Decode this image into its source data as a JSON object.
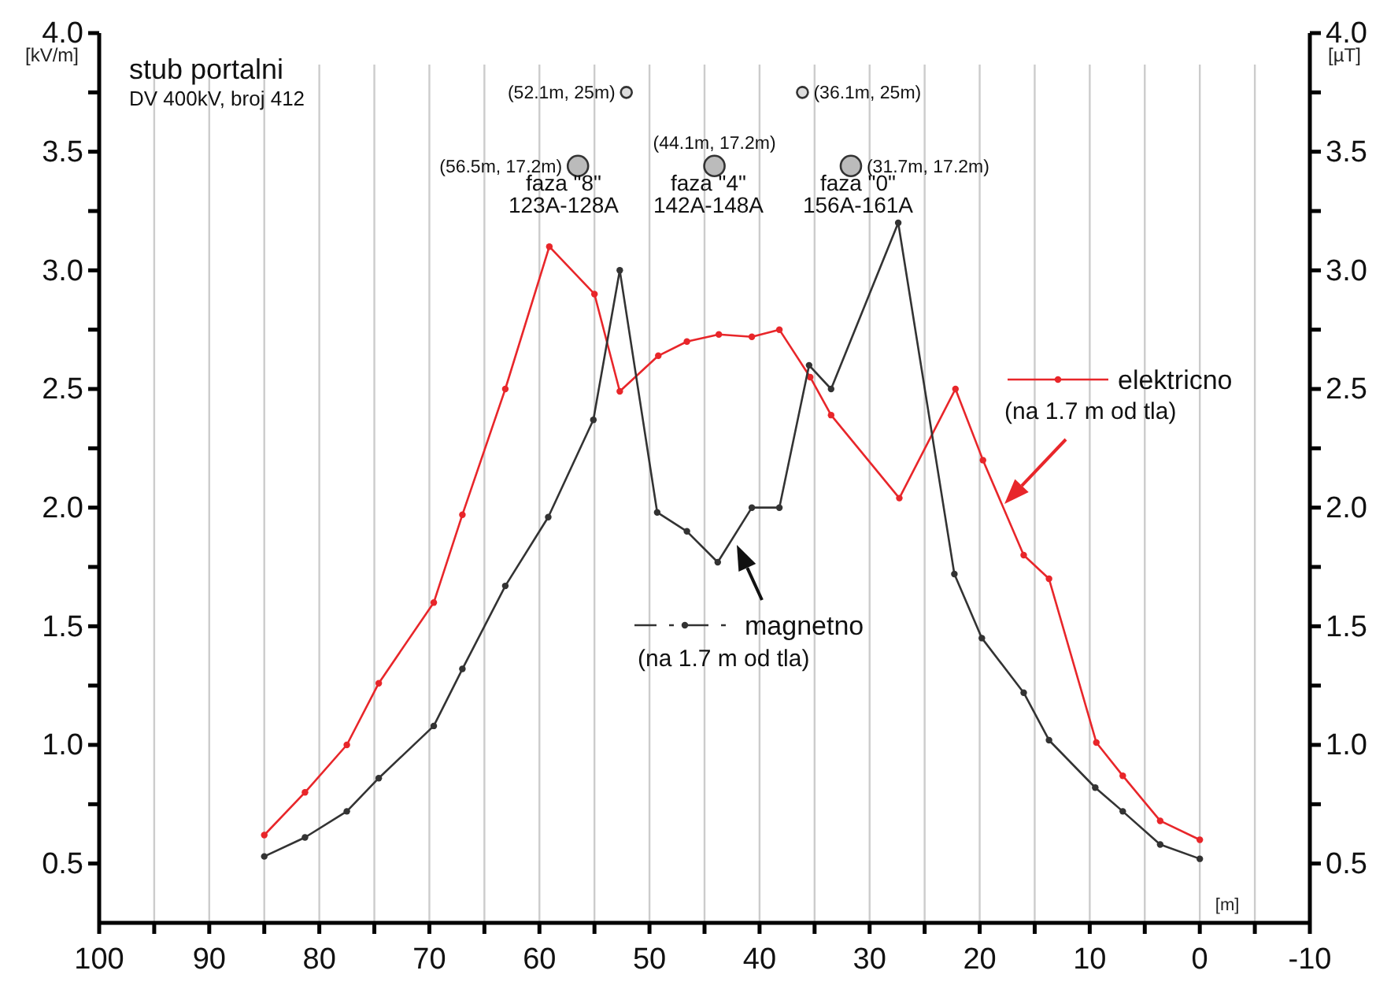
{
  "chart_data": {
    "type": "line",
    "title": "stub portalni",
    "subtitle": "DV 400kV, broj 412",
    "xlabel": "[m]",
    "ylabel": "[kV/m]",
    "y2label": "[µT]",
    "xlim": [
      100,
      -10
    ],
    "xticks": [
      100,
      {
        "value": 95,
        "label": null
      },
      90,
      {
        "value": 85,
        "label": null
      },
      80,
      {
        "value": 75,
        "label": null
      },
      70,
      {
        "value": 65,
        "label": null
      },
      60,
      {
        "value": 55,
        "label": null
      },
      50,
      {
        "value": 45,
        "label": null
      },
      40,
      {
        "value": 35,
        "label": null
      },
      30,
      {
        "value": 25,
        "label": null
      },
      20,
      {
        "value": 15,
        "label": null
      },
      10,
      {
        "value": 5,
        "label": null
      },
      0,
      {
        "value": -5,
        "label": null
      },
      -10
    ],
    "ylim": [
      0.25,
      4.0
    ],
    "yticks": [
      {
        "value": 0.5,
        "label": "0.5"
      },
      {
        "value": 0.75,
        "label": null
      },
      {
        "value": 1,
        "label": "1.0"
      },
      {
        "value": 1.25,
        "label": null
      },
      {
        "value": 1.5,
        "label": "1.5"
      },
      {
        "value": 1.75,
        "label": null
      },
      {
        "value": 2,
        "label": "2.0"
      },
      {
        "value": 2.25,
        "label": null
      },
      {
        "value": 2.5,
        "label": "2.5"
      },
      {
        "value": 2.75,
        "label": null
      },
      {
        "value": 3,
        "label": "3.0"
      },
      {
        "value": 3.25,
        "label": null
      },
      {
        "value": 3.5,
        "label": "3.5"
      },
      {
        "value": 3.75,
        "label": null
      },
      {
        "value": 4,
        "label": "4.0"
      }
    ],
    "y2lim": [
      0.25,
      4.0
    ],
    "y2ticks": [
      {
        "value": 0.5,
        "label": "0.5"
      },
      {
        "value": 0.75,
        "label": null
      },
      {
        "value": 1,
        "label": "1.0"
      },
      {
        "value": 1.25,
        "label": null
      },
      {
        "value": 1.5,
        "label": "1.5"
      },
      {
        "value": 1.75,
        "label": null
      },
      {
        "value": 2,
        "label": "2.0"
      },
      {
        "value": 2.25,
        "label": null
      },
      {
        "value": 2.5,
        "label": "2.5"
      },
      {
        "value": 2.75,
        "label": null
      },
      {
        "value": 3,
        "label": "3.0"
      },
      {
        "value": 3.25,
        "label": null
      },
      {
        "value": 3.5,
        "label": "3.5"
      },
      {
        "value": 3.75,
        "label": null
      },
      {
        "value": 4,
        "label": "4.0"
      }
    ],
    "grid": "x",
    "legend": "right",
    "marker": "circle",
    "line_style": "solid",
    "series": [
      {
        "name": "elektricno",
        "color": "#e8262a",
        "x": [
          85,
          81.3,
          77.5,
          74.6,
          69.6,
          67,
          63.1,
          59.1,
          55,
          52.7,
          49.2,
          46.6,
          43.7,
          40.7,
          38.2,
          35.4,
          33.5,
          27.3,
          22.2,
          19.7,
          16,
          13.7,
          9.4,
          7,
          3.6,
          0
        ],
        "values": [
          0.62,
          0.8,
          1.0,
          1.26,
          1.6,
          1.97,
          2.5,
          3.1,
          2.9,
          2.49,
          2.64,
          2.7,
          2.73,
          2.72,
          2.75,
          2.55,
          2.39,
          2.04,
          2.5,
          2.2,
          1.8,
          1.7,
          1.01,
          0.87,
          0.68,
          0.6
        ]
      },
      {
        "name": "magnetno",
        "color": "#333333",
        "x": [
          85,
          81.3,
          77.5,
          74.6,
          69.6,
          67,
          63.1,
          59.2,
          55.1,
          52.7,
          49.3,
          46.6,
          43.8,
          40.7,
          38.2,
          35.5,
          33.5,
          27.4,
          22.3,
          19.8,
          16,
          13.7,
          9.5,
          7,
          3.6,
          0
        ],
        "values": [
          0.53,
          0.61,
          0.72,
          0.86,
          1.08,
          1.32,
          1.67,
          1.96,
          2.37,
          3.0,
          1.98,
          1.9,
          1.77,
          2.0,
          2.0,
          2.6,
          2.5,
          3.2,
          1.72,
          1.45,
          1.22,
          1.02,
          0.82,
          0.72,
          0.58,
          0.52
        ]
      }
    ],
    "annotations": [
      {
        "text": "(52.1m, 25m)",
        "x": 52.1,
        "y": 3.75
      },
      {
        "text": "(36.1m, 25m)",
        "x": 36.1,
        "y": 3.75
      },
      {
        "text": "(56.5m, 17.2m)",
        "x": 56.5,
        "y": 3.44
      },
      {
        "text": "(44.1m, 17.2m)",
        "x": 44.1,
        "y": 3.44
      },
      {
        "text": "(31.7m, 17.2m)",
        "x": 31.7,
        "y": 3.44
      },
      "faza \"8\"",
      "123A-128A",
      "faza \"4\"",
      "142A-148A",
      "faza \"0\"",
      "156A-161A",
      "(na 1.7 m od tla)",
      "(na 1.7 m od tla)"
    ]
  }
}
